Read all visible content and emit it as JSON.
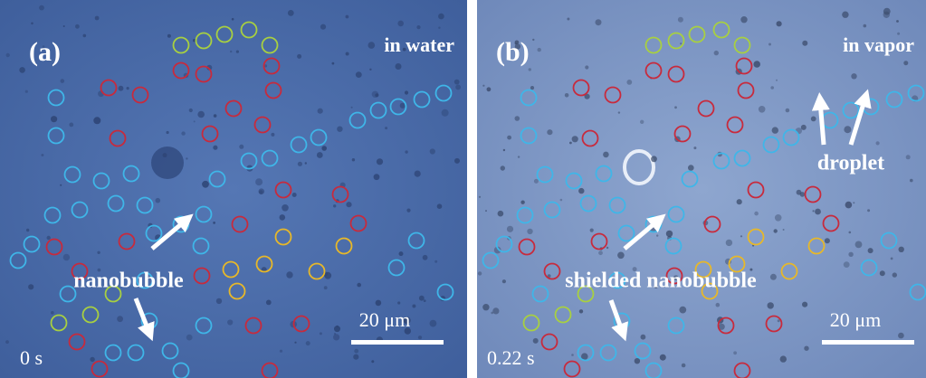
{
  "panels": [
    {
      "label": "(a)",
      "condition": "in water",
      "annotations": [
        "nanobubble"
      ],
      "scale_bar": "20 μm",
      "time": "0 s"
    },
    {
      "label": "(b)",
      "condition": "in vapor",
      "annotations": [
        "droplet",
        "shielded nanobubble"
      ],
      "scale_bar": "20 μm",
      "time": "0.22 s"
    }
  ]
}
